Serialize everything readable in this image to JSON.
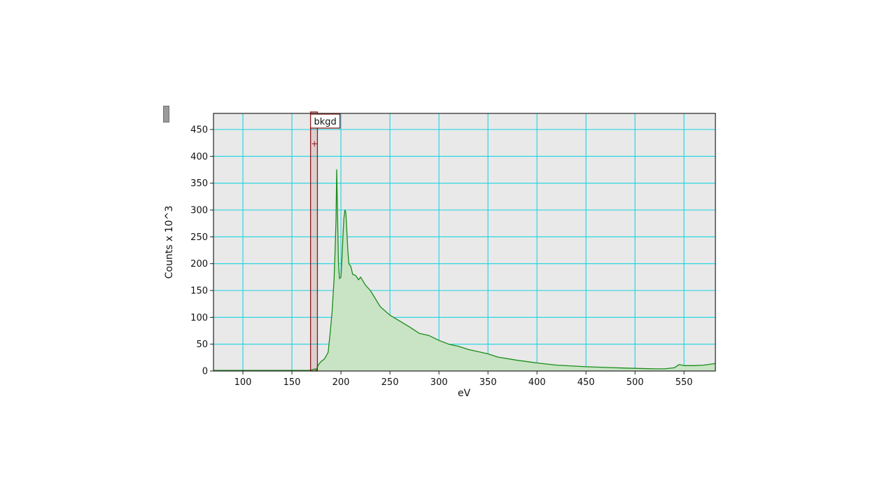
{
  "chart_data": {
    "type": "area",
    "title": "",
    "xlabel": "eV",
    "ylabel": "Counts x 10^3",
    "xlim": [
      70,
      582
    ],
    "ylim": [
      0,
      480
    ],
    "xticks": [
      100,
      150,
      200,
      250,
      300,
      350,
      400,
      450,
      500,
      550
    ],
    "yticks": [
      0,
      50,
      100,
      150,
      200,
      250,
      300,
      350,
      400,
      450
    ],
    "grid": true,
    "series": [
      {
        "x": [
          70,
          150,
          168,
          170,
          172,
          174,
          175,
          176,
          178,
          180,
          183,
          185,
          187,
          189,
          191,
          192,
          193,
          194,
          195,
          195.7,
          196.5,
          197.5,
          198.5,
          200,
          201,
          202,
          203,
          204,
          205,
          206,
          207,
          208,
          210,
          212,
          215,
          218,
          220,
          225,
          230,
          235,
          240,
          245,
          250,
          260,
          270,
          280,
          290,
          300,
          310,
          320,
          330,
          340,
          350,
          360,
          380,
          400,
          420,
          450,
          480,
          500,
          520,
          530,
          540,
          545,
          550,
          560,
          570,
          582
        ],
        "y": [
          1,
          1,
          1,
          2,
          3,
          4,
          1,
          8,
          14,
          18,
          22,
          28,
          35,
          70,
          110,
          140,
          170,
          220,
          280,
          375,
          300,
          200,
          172,
          175,
          210,
          250,
          285,
          300,
          295,
          260,
          225,
          200,
          195,
          180,
          178,
          170,
          175,
          160,
          150,
          135,
          120,
          112,
          104,
          93,
          82,
          70,
          66,
          57,
          50,
          46,
          40,
          36,
          32,
          26,
          20,
          15,
          11,
          8,
          6,
          5,
          4,
          4,
          6,
          12,
          10,
          10,
          11,
          14
        ],
        "color": "#1a8c1a",
        "fill": "#c9e4c5"
      }
    ],
    "annotations": [
      {
        "type": "region",
        "label": "bkgd",
        "x_start": 169,
        "x_end": 176,
        "color": "#8b1a1a",
        "marker": "+",
        "marker_x": 173,
        "marker_y": 423
      }
    ]
  }
}
